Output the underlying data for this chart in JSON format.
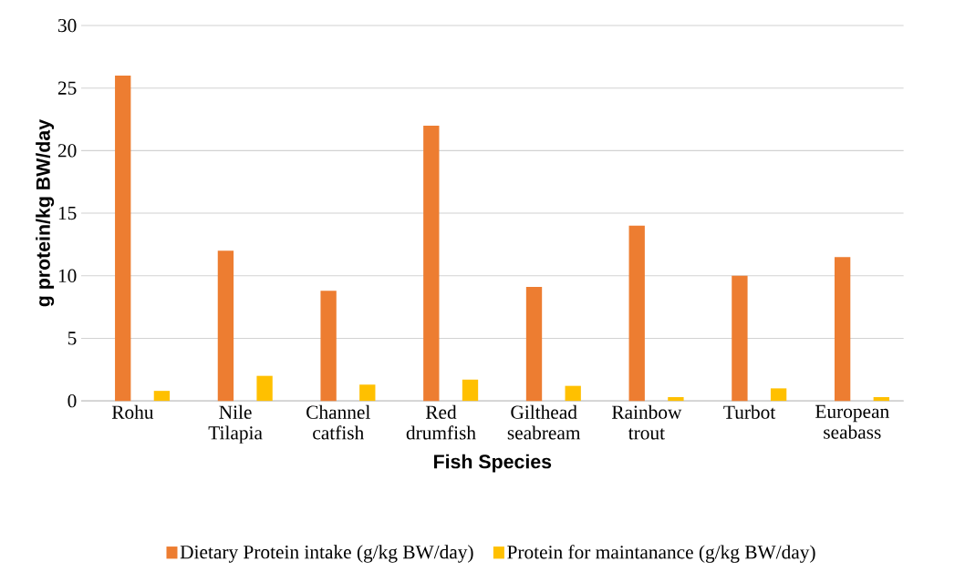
{
  "chart_data": {
    "type": "bar",
    "xlabel": "Fish Species",
    "ylabel": "g protein/kg BW/day",
    "categories": [
      "Rohu",
      "Nile Tilapia",
      "Channel catfish",
      "Red drumfish",
      "Gilthead seabream",
      "Rainbow trout",
      "Turbot",
      "European seabass"
    ],
    "series": [
      {
        "name": "Dietary Protein intake (g/kg BW/day)",
        "color": "#ed7d31",
        "values": [
          26,
          12,
          8.8,
          22,
          9.1,
          14,
          10,
          11.5
        ]
      },
      {
        "name": "Protein for maintanance (g/kg BW/day)",
        "color": "#ffc000",
        "values": [
          0.8,
          2.0,
          1.3,
          1.7,
          1.2,
          0.3,
          1.0,
          0.3
        ]
      }
    ],
    "ylim": [
      0,
      30
    ],
    "yticks": [
      0,
      5,
      10,
      15,
      20,
      25,
      30
    ],
    "grid": "y",
    "legend": "bottom"
  }
}
